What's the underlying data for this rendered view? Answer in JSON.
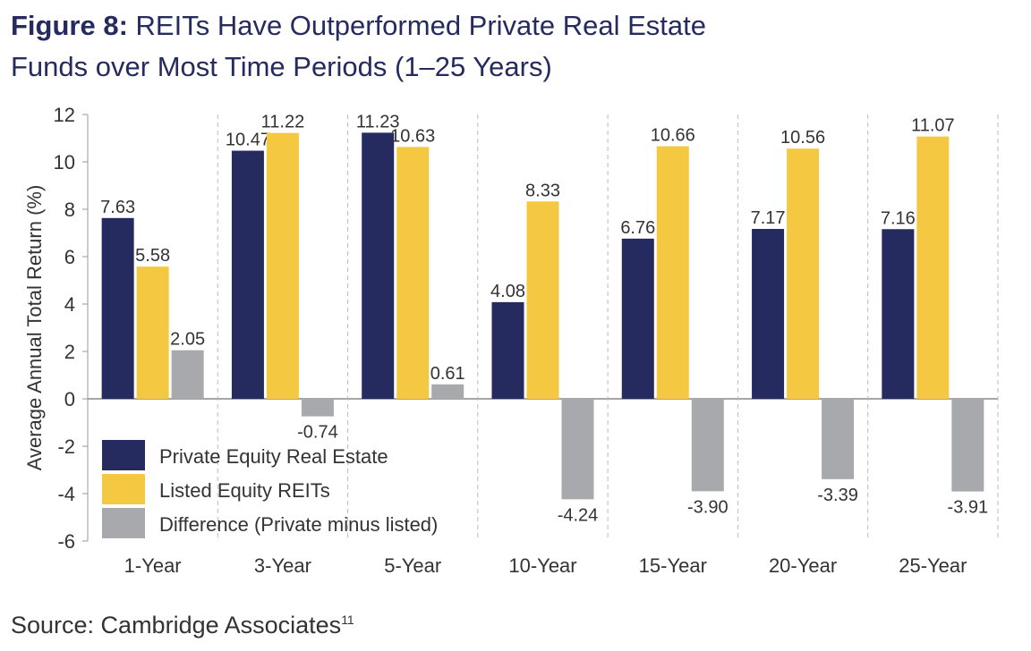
{
  "title": {
    "lead": "Figure 8:",
    "line1": "REITs Have Outperformed Private Real Estate",
    "line2": "Funds over Most Time Periods (1–25 Years)"
  },
  "source": {
    "text": "Source: Cambridge Associates",
    "note": "11"
  },
  "colors": {
    "private": "#252b5f",
    "listed": "#f5c842",
    "difference": "#a7a9ac",
    "text": "#333333"
  },
  "chart_data": {
    "type": "bar",
    "categories": [
      "1-Year",
      "3-Year",
      "5-Year",
      "10-Year",
      "15-Year",
      "20-Year",
      "25-Year"
    ],
    "series": [
      {
        "name": "Private Equity Real Estate",
        "values": [
          7.63,
          10.47,
          11.23,
          4.08,
          6.76,
          7.17,
          7.16
        ]
      },
      {
        "name": "Listed Equity REITs",
        "values": [
          5.58,
          11.22,
          10.63,
          8.33,
          10.66,
          10.56,
          11.07
        ]
      },
      {
        "name": "Difference (Private minus listed)",
        "values": [
          2.05,
          -0.74,
          0.61,
          -4.24,
          -3.9,
          -3.39,
          -3.91
        ]
      }
    ],
    "value_labels": [
      [
        "7.63",
        "10.47",
        "11.23",
        "4.08",
        "6.76",
        "7.17",
        "7.16"
      ],
      [
        "5.58",
        "11.22",
        "10.63",
        "8.33",
        "10.66",
        "10.56",
        "11.07"
      ],
      [
        "2.05",
        "-0.74",
        "0.61",
        "-4.24",
        "-3.90",
        "-3.39",
        "-3.91"
      ]
    ],
    "ylabel": "Average Annual Total Return (%)",
    "ylim": [
      -6,
      12
    ],
    "yticks": [
      12,
      10,
      8,
      6,
      4,
      2,
      0,
      -2,
      -4,
      -6
    ],
    "legend_position": "bottom-left",
    "grid": "vertical dashed separators"
  }
}
